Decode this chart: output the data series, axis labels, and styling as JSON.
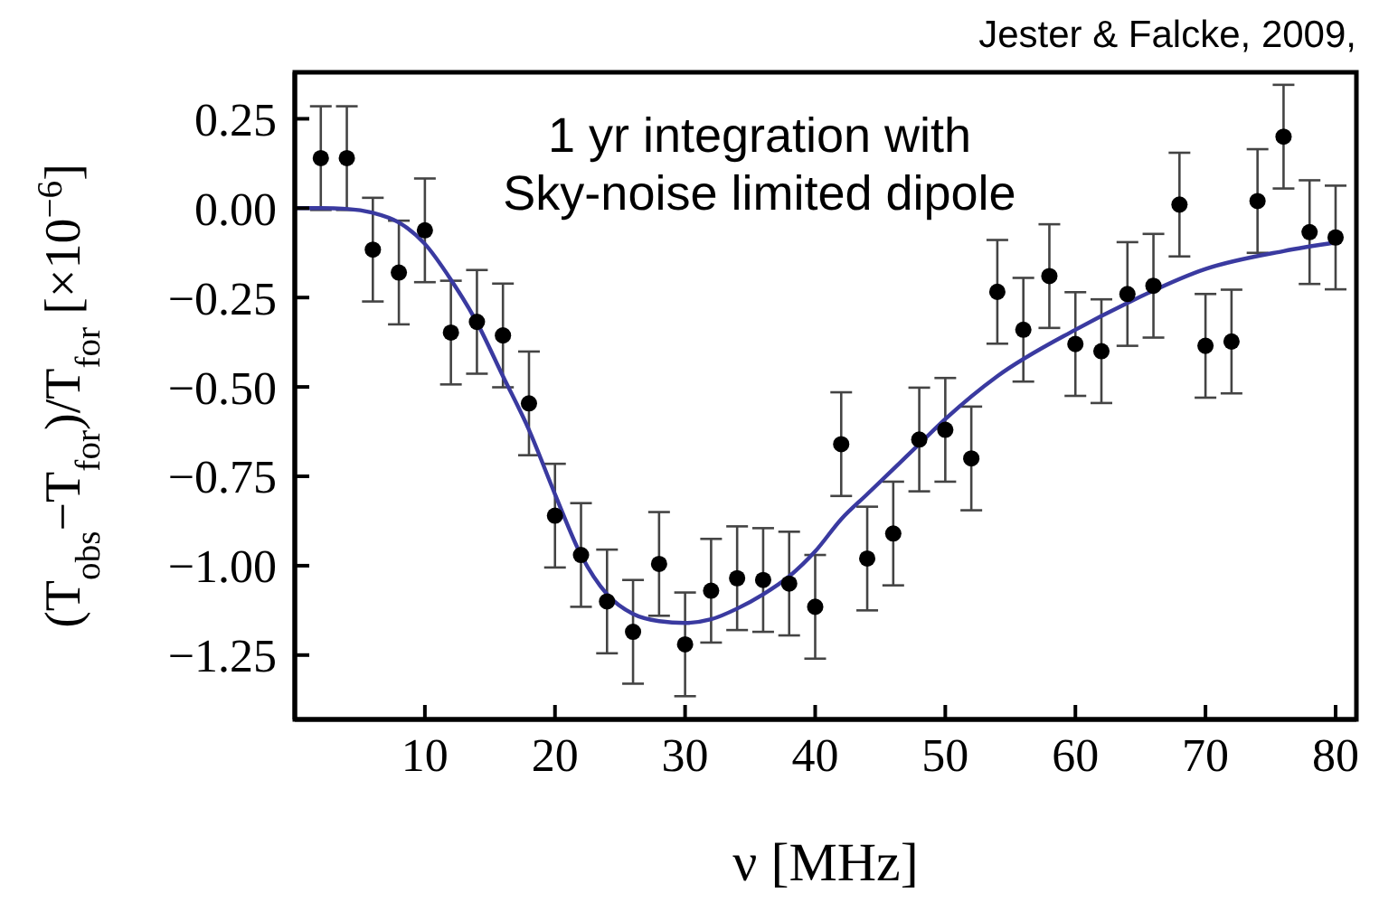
{
  "chart_data": {
    "type": "scatter",
    "title": "Jester & Falcke, 2009,",
    "annotations": [
      "1 yr integration with\nSky-noise limited dipole"
    ],
    "xlabel": "ν [MHz]",
    "ylabel": "(T$_{obs}$−T$_{for}$)/T$_{for}$ [×10$^{−6}$]",
    "x": [
      2,
      4,
      6,
      8,
      10,
      12,
      14,
      16,
      18,
      20,
      22,
      24,
      26,
      28,
      30,
      32,
      34,
      36,
      38,
      40,
      42,
      44,
      46,
      48,
      50,
      52,
      54,
      56,
      58,
      60,
      62,
      64,
      66,
      68,
      70,
      72,
      74,
      76,
      78,
      80
    ],
    "series": [
      {
        "color": "#000000",
        "marker": "circle",
        "values": [
          0.14,
          0.14,
          -0.116,
          -0.18,
          -0.062,
          -0.348,
          -0.318,
          -0.356,
          -0.546,
          -0.86,
          -0.97,
          -1.1,
          -1.185,
          -0.995,
          -1.22,
          -1.07,
          -1.035,
          -1.04,
          -1.05,
          -1.115,
          -0.66,
          -0.98,
          -0.91,
          -0.647,
          -0.62,
          -0.7,
          -0.234,
          -0.34,
          -0.19,
          -0.38,
          -0.4,
          -0.24,
          -0.217,
          0.01,
          -0.385,
          -0.373,
          0.02,
          0.2,
          -0.067,
          -0.082
        ],
        "errors": [
          0.145,
          0.145,
          0.145,
          0.145,
          0.145,
          0.145,
          0.145,
          0.145,
          0.145,
          0.145,
          0.145,
          0.145,
          0.145,
          0.145,
          0.145,
          0.145,
          0.145,
          0.145,
          0.145,
          0.145,
          0.145,
          0.145,
          0.145,
          0.145,
          0.145,
          0.145,
          0.145,
          0.145,
          0.145,
          0.145,
          0.145,
          0.145,
          0.145,
          0.145,
          0.145,
          0.145,
          0.145,
          0.145,
          0.145,
          0.145
        ]
      },
      {
        "type": "line",
        "color": "#3a3aa0",
        "line_style": "solid",
        "x": [
          0,
          2,
          4,
          6,
          8,
          10,
          12,
          14,
          16,
          18,
          20,
          22,
          24,
          26,
          28,
          30,
          32,
          34,
          36,
          38,
          40,
          42,
          44,
          46,
          48,
          50,
          54,
          60,
          64,
          70,
          76,
          80
        ],
        "values": [
          0,
          0,
          -0.002,
          -0.013,
          -0.04,
          -0.1,
          -0.2,
          -0.32,
          -0.47,
          -0.62,
          -0.8,
          -0.97,
          -1.08,
          -1.135,
          -1.155,
          -1.16,
          -1.15,
          -1.12,
          -1.08,
          -1.03,
          -0.96,
          -0.87,
          -0.8,
          -0.73,
          -0.66,
          -0.59,
          -0.47,
          -0.34,
          -0.265,
          -0.17,
          -0.12,
          -0.096
        ]
      }
    ],
    "xlim": [
      0,
      81.6
    ],
    "xticks": [
      10,
      20,
      30,
      40,
      50,
      60,
      70,
      80
    ],
    "ylim": [
      -1.43,
      0.38
    ],
    "yticks": [
      {
        "value": 0.25,
        "label": "0.25"
      },
      {
        "value": 0,
        "label": "0.00"
      },
      {
        "value": -0.25,
        "label": "−0.25"
      },
      {
        "value": -0.5,
        "label": "−0.50"
      },
      {
        "value": -0.75,
        "label": "−0.75"
      },
      {
        "value": -1,
        "label": "−1.00"
      },
      {
        "value": -1.25,
        "label": "−1.25"
      }
    ]
  }
}
